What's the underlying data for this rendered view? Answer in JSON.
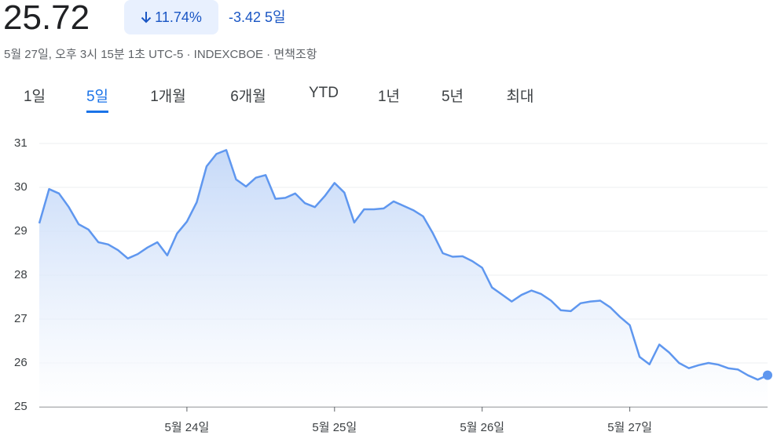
{
  "header": {
    "price": "25.72",
    "change_percent": "11.74%",
    "change": "-3.42",
    "period": "5일",
    "subtitle": "5월 27일, 오후 3시 15분 1초 UTC-5 · INDEXCBOE · 면책조항"
  },
  "tabs": {
    "items": [
      "1일",
      "5일",
      "1개월",
      "6개월",
      "YTD",
      "1년",
      "5년",
      "최대"
    ],
    "selected": 1
  },
  "chart_data": {
    "type": "line",
    "color": "#5f97ef",
    "grid": true,
    "categories": [
      null,
      null,
      null,
      null,
      null,
      null,
      null,
      null,
      null,
      null,
      null,
      null,
      null,
      null,
      null,
      "5월 24일",
      null,
      null,
      null,
      null,
      null,
      null,
      null,
      null,
      null,
      null,
      null,
      null,
      null,
      null,
      "5월 25일",
      null,
      null,
      null,
      null,
      null,
      null,
      null,
      null,
      null,
      null,
      null,
      null,
      null,
      null,
      "5월 26일",
      null,
      null,
      null,
      null,
      null,
      null,
      null,
      null,
      null,
      null,
      null,
      null,
      null,
      null,
      "5월 27일",
      null,
      null,
      null,
      null,
      null,
      null,
      null,
      null,
      null,
      null,
      null,
      null,
      null,
      null
    ],
    "values": [
      29.18,
      29.96,
      29.86,
      29.55,
      29.16,
      29.04,
      28.75,
      28.7,
      28.57,
      28.38,
      28.48,
      28.63,
      28.75,
      28.45,
      28.95,
      29.22,
      29.66,
      30.48,
      30.76,
      30.85,
      30.18,
      30.02,
      30.22,
      30.28,
      29.74,
      29.76,
      29.86,
      29.64,
      29.55,
      29.8,
      30.1,
      29.88,
      29.2,
      29.5,
      29.5,
      29.52,
      29.68,
      29.58,
      29.48,
      29.34,
      28.95,
      28.5,
      28.42,
      28.43,
      28.32,
      28.17,
      27.72,
      27.56,
      27.4,
      27.55,
      27.65,
      27.57,
      27.42,
      27.2,
      27.18,
      27.36,
      27.4,
      27.42,
      27.27,
      27.05,
      26.86,
      26.14,
      25.97,
      26.42,
      26.24,
      26,
      25.88,
      25.95,
      26,
      25.96,
      25.88,
      25.85,
      25.72,
      25.62,
      25.72
    ],
    "ylim": [
      25,
      31
    ],
    "yticks": [
      25,
      26,
      27,
      28,
      29,
      30,
      31
    ]
  }
}
